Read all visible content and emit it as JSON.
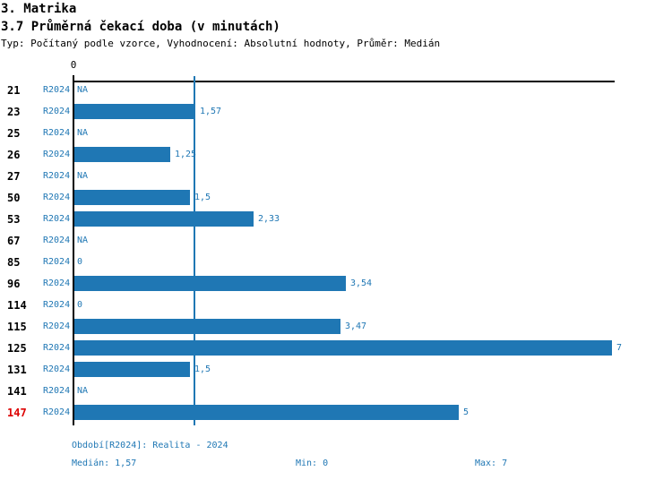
{
  "colors": {
    "accent": "#1f77b4",
    "alert": "#dd0000",
    "axis": "#000000"
  },
  "header": {
    "title": "3. Matrika",
    "subtitle": "3.7 Průměrná čekací doba (v minutách)",
    "meta": "Typ: Počítaný podle vzorce, Vyhodnocení: Absolutní hodnoty, Průměr: Medián"
  },
  "chart_data": {
    "type": "bar",
    "orientation": "horizontal",
    "series_label": "R2024",
    "axis_top_tick_label": "0",
    "xlim": [
      0,
      7
    ],
    "median_line_value": 1.57,
    "grid": false,
    "rows": [
      {
        "id": "21",
        "value": null,
        "label": "NA",
        "highlight": false
      },
      {
        "id": "23",
        "value": 1.57,
        "label": "1,57",
        "highlight": false
      },
      {
        "id": "25",
        "value": null,
        "label": "NA",
        "highlight": false
      },
      {
        "id": "26",
        "value": 1.25,
        "label": "1,25",
        "highlight": false
      },
      {
        "id": "27",
        "value": null,
        "label": "NA",
        "highlight": false
      },
      {
        "id": "50",
        "value": 1.5,
        "label": "1,5",
        "highlight": false
      },
      {
        "id": "53",
        "value": 2.33,
        "label": "2,33",
        "highlight": false
      },
      {
        "id": "67",
        "value": null,
        "label": "NA",
        "highlight": false
      },
      {
        "id": "85",
        "value": 0,
        "label": "0",
        "highlight": false
      },
      {
        "id": "96",
        "value": 3.54,
        "label": "3,54",
        "highlight": false
      },
      {
        "id": "114",
        "value": 0,
        "label": "0",
        "highlight": false
      },
      {
        "id": "115",
        "value": 3.47,
        "label": "3,47",
        "highlight": false
      },
      {
        "id": "125",
        "value": 7,
        "label": "7",
        "highlight": false
      },
      {
        "id": "131",
        "value": 1.5,
        "label": "1,5",
        "highlight": false
      },
      {
        "id": "141",
        "value": null,
        "label": "NA",
        "highlight": false
      },
      {
        "id": "147",
        "value": 5,
        "label": "5",
        "highlight": true
      }
    ]
  },
  "footer": {
    "period": "Období[R2024]: Realita - 2024",
    "median": "Medián: 1,57",
    "min": "Min: 0",
    "max": "Max: 7"
  }
}
